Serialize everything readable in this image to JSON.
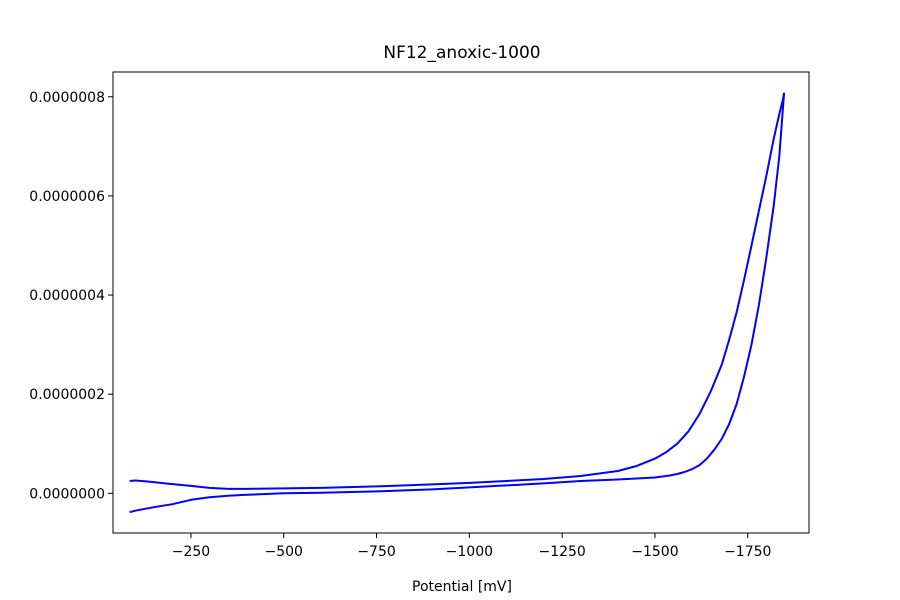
{
  "chart_data": {
    "type": "line",
    "title": "NF12_anoxic-1000",
    "xlabel": "Potential [mV]",
    "ylabel": "",
    "x_inverted": true,
    "xlim": [
      -40,
      -1915
    ],
    "ylim": [
      -8e-08,
      8.5e-07
    ],
    "x_ticks": [
      {
        "value": -250,
        "label": "−250"
      },
      {
        "value": -500,
        "label": "−500"
      },
      {
        "value": -750,
        "label": "−750"
      },
      {
        "value": -1000,
        "label": "−1000"
      },
      {
        "value": -1250,
        "label": "−1250"
      },
      {
        "value": -1500,
        "label": "−1500"
      },
      {
        "value": -1750,
        "label": "−1750"
      }
    ],
    "y_ticks": [
      {
        "value": 0.0,
        "label": "0.0000000"
      },
      {
        "value": 2e-07,
        "label": "0.0000002"
      },
      {
        "value": 4e-07,
        "label": "0.0000004"
      },
      {
        "value": 6e-07,
        "label": "0.0000006"
      },
      {
        "value": 8e-07,
        "label": "0.0000008"
      }
    ],
    "grid": false,
    "series": [
      {
        "color": "#0000ff",
        "x": [
          -85,
          -100,
          -130,
          -180,
          -250,
          -300,
          -350,
          -400,
          -500,
          -600,
          -750,
          -900,
          -1000,
          -1100,
          -1200,
          -1300,
          -1400,
          -1450,
          -1500,
          -1530,
          -1560,
          -1590,
          -1620,
          -1650,
          -1680,
          -1700,
          -1720,
          -1740,
          -1760,
          -1780,
          -1800,
          -1820,
          -1835,
          -1845,
          -1848
        ],
        "y": [
          2.5e-08,
          2.6e-08,
          2.4e-08,
          2e-08,
          1.5e-08,
          1.1e-08,
          9e-09,
          9e-09,
          1e-08,
          1.1e-08,
          1.4e-08,
          1.8e-08,
          2.1e-08,
          2.5e-08,
          2.9e-08,
          3.5e-08,
          4.5e-08,
          5.5e-08,
          7e-08,
          8.3e-08,
          1e-07,
          1.25e-07,
          1.6e-07,
          2.05e-07,
          2.6e-07,
          3.1e-07,
          3.65e-07,
          4.3e-07,
          5e-07,
          5.7e-07,
          6.4e-07,
          7.15e-07,
          7.65e-07,
          7.95e-07,
          8.08e-07
        ]
      },
      {
        "color": "#0000ff",
        "x": [
          -1848,
          -1835,
          -1820,
          -1800,
          -1780,
          -1760,
          -1740,
          -1720,
          -1700,
          -1680,
          -1660,
          -1640,
          -1620,
          -1600,
          -1580,
          -1560,
          -1540,
          -1520,
          -1500,
          -1450,
          -1400,
          -1300,
          -1200,
          -1100,
          -1000,
          -900,
          -750,
          -600,
          -500,
          -400,
          -350,
          -300,
          -250,
          -200,
          -150,
          -100,
          -85
        ],
        "y": [
          8.08e-07,
          6.8e-07,
          5.8e-07,
          4.75e-07,
          3.8e-07,
          3e-07,
          2.35e-07,
          1.8e-07,
          1.4e-07,
          1.1e-07,
          8.8e-08,
          7e-08,
          5.7e-08,
          4.9e-08,
          4.3e-08,
          3.9e-08,
          3.6e-08,
          3.4e-08,
          3.2e-08,
          3e-08,
          2.8e-08,
          2.5e-08,
          2e-08,
          1.6e-08,
          1.2e-08,
          8e-09,
          4e-09,
          1e-09,
          0.0,
          -3e-09,
          -5e-09,
          -8e-09,
          -1.3e-08,
          -2.2e-08,
          -2.8e-08,
          -3.5e-08,
          -3.8e-08
        ]
      }
    ]
  }
}
